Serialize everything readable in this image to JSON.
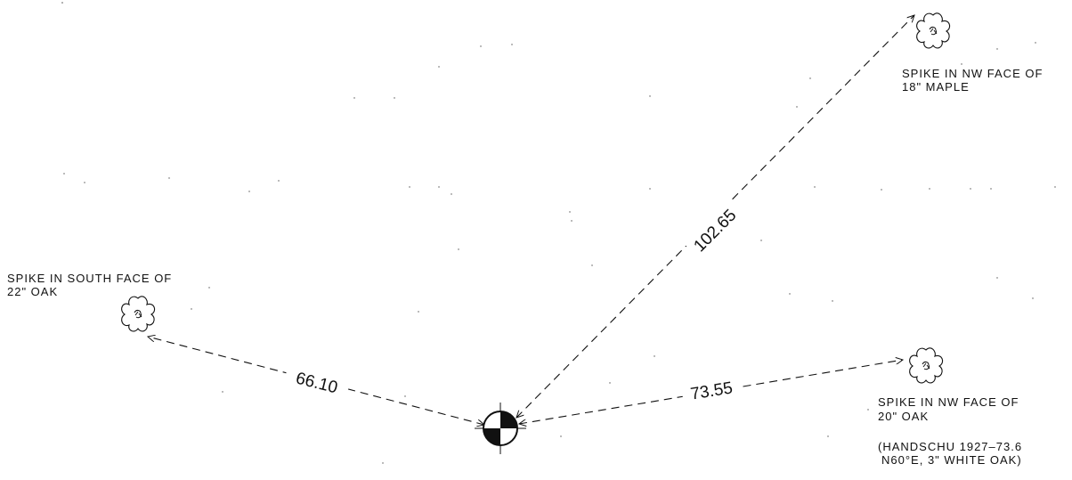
{
  "trees": {
    "maple": {
      "label_line1": "SPIKE IN NW FACE OF",
      "label_line2": "18\" MAPLE"
    },
    "oak22": {
      "label_line1": "SPIKE IN SOUTH FACE OF",
      "label_line2": "22\" OAK"
    },
    "oak20": {
      "label_line1": "SPIKE IN NW FACE OF",
      "label_line2": "20\" OAK"
    }
  },
  "distances": {
    "to_maple": "102.65",
    "to_oak22": "66.10",
    "to_oak20": "73.55"
  },
  "reference_note": {
    "line1": "(HANDSCHU 1927–73.6",
    "line2": "N60°E, 3\" WHITE OAK)"
  },
  "colors": {
    "ink": "#111111"
  }
}
